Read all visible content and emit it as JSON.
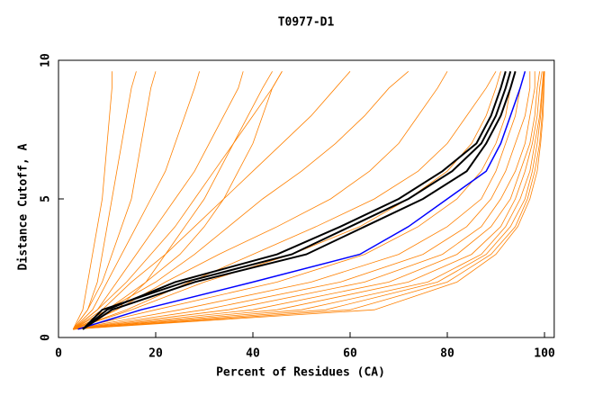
{
  "chart_data": {
    "type": "line",
    "title": "T0977-D1",
    "x_label": "Percent of Residues (CA)",
    "y_label": "Distance Cutoff, A",
    "xlim": [
      0,
      102
    ],
    "ylim": [
      0,
      10
    ],
    "xticks": [
      0,
      20,
      40,
      60,
      80,
      100
    ],
    "yticks": [
      0,
      5,
      10
    ],
    "series": [
      {
        "color": "#ff8000",
        "x": [
          3,
          5,
          6,
          7,
          8,
          9,
          9.5,
          10,
          10.5,
          11,
          11
        ],
        "values": [
          0.3,
          1,
          2,
          3,
          4,
          5,
          6,
          7,
          8,
          9,
          9.6
        ]
      },
      {
        "color": "#ff8000",
        "x": [
          3,
          6,
          8,
          9,
          10,
          11,
          12,
          13,
          14,
          15,
          16
        ],
        "values": [
          0.3,
          1,
          2,
          3,
          4,
          5,
          6,
          7,
          8,
          9,
          9.6
        ]
      },
      {
        "color": "#ff8000",
        "x": [
          3,
          6,
          9,
          11,
          13,
          15,
          16,
          17,
          18,
          19,
          20
        ],
        "values": [
          0.3,
          1,
          2,
          3,
          4,
          5,
          6,
          7,
          8,
          9,
          9.6
        ]
      },
      {
        "color": "#ff8000",
        "x": [
          3,
          7,
          10,
          13,
          16,
          19,
          22,
          24,
          26,
          28,
          29
        ],
        "values": [
          0.3,
          1,
          2,
          3,
          4,
          5,
          6,
          7,
          8,
          9,
          9.6
        ]
      },
      {
        "color": "#ff8000",
        "x": [
          3,
          8,
          12,
          16,
          20,
          24,
          28,
          31,
          34,
          37,
          38
        ],
        "values": [
          0.3,
          1,
          2,
          3,
          4,
          5,
          6,
          7,
          8,
          9,
          9.6
        ]
      },
      {
        "color": "#ff8000",
        "x": [
          3,
          8,
          14,
          19,
          24,
          28,
          32,
          36,
          40,
          44,
          46
        ],
        "values": [
          0.3,
          1,
          2,
          3,
          4,
          5,
          6,
          7,
          8,
          9,
          9.6
        ]
      },
      {
        "color": "#ff8000",
        "x": [
          3,
          9,
          15,
          22,
          28,
          34,
          40,
          46,
          52,
          57,
          60
        ],
        "values": [
          0.3,
          1,
          2,
          3,
          4,
          5,
          6,
          7,
          8,
          9,
          9.6
        ]
      },
      {
        "color": "#ff8000",
        "x": [
          3,
          10,
          20,
          28,
          35,
          42,
          50,
          57,
          63,
          68,
          72
        ],
        "values": [
          0.3,
          1,
          2,
          3,
          4,
          5,
          6,
          7,
          8,
          9,
          9.6
        ]
      },
      {
        "color": "#ff8000",
        "x": [
          3,
          12,
          22,
          33,
          45,
          56,
          64,
          70,
          74,
          78,
          80
        ],
        "values": [
          0.3,
          1,
          2,
          3,
          4,
          5,
          6,
          7,
          8,
          9,
          9.6
        ]
      },
      {
        "color": "#ff8000",
        "x": [
          3,
          14,
          27,
          40,
          53,
          65,
          74,
          80,
          84,
          88,
          90
        ],
        "values": [
          0.3,
          1,
          2,
          3,
          4,
          5,
          6,
          7,
          8,
          9,
          9.6
        ]
      },
      {
        "color": "#ff8000",
        "x": [
          3,
          15,
          30,
          48,
          62,
          72,
          80,
          85,
          88,
          90,
          91
        ],
        "values": [
          0.3,
          1,
          2,
          3,
          4,
          5,
          6,
          7,
          8,
          9,
          9.6
        ]
      },
      {
        "color": "#ff8000",
        "x": [
          3,
          10,
          18,
          25,
          30,
          34,
          37,
          40,
          42,
          44,
          46
        ],
        "values": [
          0.3,
          1,
          2,
          3,
          4,
          5,
          6,
          7,
          8,
          9,
          9.6
        ]
      },
      {
        "color": "#ff8000",
        "x": [
          3,
          12,
          18,
          22,
          26,
          30,
          33,
          36,
          39,
          42,
          44
        ],
        "values": [
          0.3,
          1,
          2,
          3,
          4,
          5,
          6,
          7,
          8,
          9,
          9.6
        ]
      },
      {
        "color": "#ff8000",
        "x": [
          3,
          20,
          45,
          63,
          74,
          82,
          87,
          90,
          92,
          93,
          94
        ],
        "values": [
          0.3,
          1,
          2,
          3,
          4,
          5,
          6,
          7,
          8,
          9,
          9.6
        ]
      },
      {
        "color": "#ff8000",
        "x": [
          3,
          25,
          52,
          70,
          80,
          87,
          90,
          92,
          94,
          95,
          96
        ],
        "values": [
          0.3,
          1,
          2,
          3,
          4,
          5,
          6,
          7,
          8,
          9,
          9.6
        ]
      },
      {
        "color": "#ff8000",
        "x": [
          3,
          30,
          58,
          75,
          84,
          89,
          92,
          94,
          96,
          97,
          97
        ],
        "values": [
          0.3,
          1,
          2,
          3,
          4,
          5,
          6,
          7,
          8,
          9,
          9.6
        ]
      },
      {
        "color": "#ff8000",
        "x": [
          3,
          35,
          63,
          79,
          87,
          91,
          94,
          96,
          97,
          98,
          98
        ],
        "values": [
          0.3,
          1,
          2,
          3,
          4,
          5,
          6,
          7,
          8,
          9,
          9.6
        ]
      },
      {
        "color": "#ff8000",
        "x": [
          3,
          40,
          68,
          82,
          89,
          93,
          95,
          97,
          98,
          98.5,
          99
        ],
        "values": [
          0.3,
          1,
          2,
          3,
          4,
          5,
          6,
          7,
          8,
          9,
          9.6
        ]
      },
      {
        "color": "#ff8000",
        "x": [
          3,
          45,
          72,
          85,
          91,
          94,
          96,
          97.5,
          98.5,
          99,
          99.5
        ],
        "values": [
          0.3,
          1,
          2,
          3,
          4,
          5,
          6,
          7,
          8,
          9,
          9.6
        ]
      },
      {
        "color": "#ff8000",
        "x": [
          3,
          50,
          76,
          87,
          92,
          95,
          97,
          98,
          99,
          99.5,
          99.8
        ],
        "values": [
          0.3,
          1,
          2,
          3,
          4,
          5,
          6,
          7,
          8,
          9,
          9.6
        ]
      },
      {
        "color": "#ff8000",
        "x": [
          3,
          55,
          78,
          88,
          93,
          96,
          97.5,
          98.5,
          99.2,
          99.6,
          99.9
        ],
        "values": [
          0.3,
          1,
          2,
          3,
          4,
          5,
          6,
          7,
          8,
          9,
          9.6
        ]
      },
      {
        "color": "#ff8000",
        "x": [
          3,
          60,
          80,
          89,
          94,
          96.5,
          98,
          99,
          99.5,
          99.8,
          100
        ],
        "values": [
          0.3,
          1,
          2,
          3,
          4,
          5,
          6,
          7,
          8,
          9,
          9.6
        ]
      },
      {
        "color": "#ff8000",
        "x": [
          3,
          65,
          82,
          90,
          94.5,
          97,
          98.5,
          99.2,
          99.7,
          99.9,
          100
        ],
        "values": [
          0.3,
          1,
          2,
          3,
          4,
          5,
          6,
          7,
          8,
          9,
          9.6
        ]
      },
      {
        "color": "#0000ff",
        "x": [
          4,
          17,
          40,
          62,
          72,
          80,
          88,
          91,
          93,
          95,
          96
        ],
        "values": [
          0.3,
          1,
          2,
          3,
          4,
          5,
          6,
          7,
          8,
          9,
          9.6
        ]
      },
      {
        "color": "#000000",
        "x": [
          5,
          9,
          26,
          48,
          60,
          72,
          81,
          87,
          90,
          92,
          93
        ],
        "values": [
          0.3,
          1,
          2,
          3,
          4,
          5,
          6,
          7,
          8,
          9,
          9.6
        ]
      },
      {
        "color": "#000000",
        "x": [
          5,
          11,
          28,
          51,
          63,
          75,
          84,
          88,
          91,
          93,
          94
        ],
        "values": [
          0.3,
          1,
          2,
          3,
          4,
          5,
          6,
          7,
          8,
          9,
          9.6
        ]
      },
      {
        "color": "#000000",
        "x": [
          5,
          10,
          24,
          45,
          58,
          70,
          79,
          86,
          89,
          91,
          92
        ],
        "values": [
          0.3,
          1,
          2,
          3,
          4,
          5,
          6,
          7,
          8,
          9,
          9.6
        ]
      }
    ]
  }
}
